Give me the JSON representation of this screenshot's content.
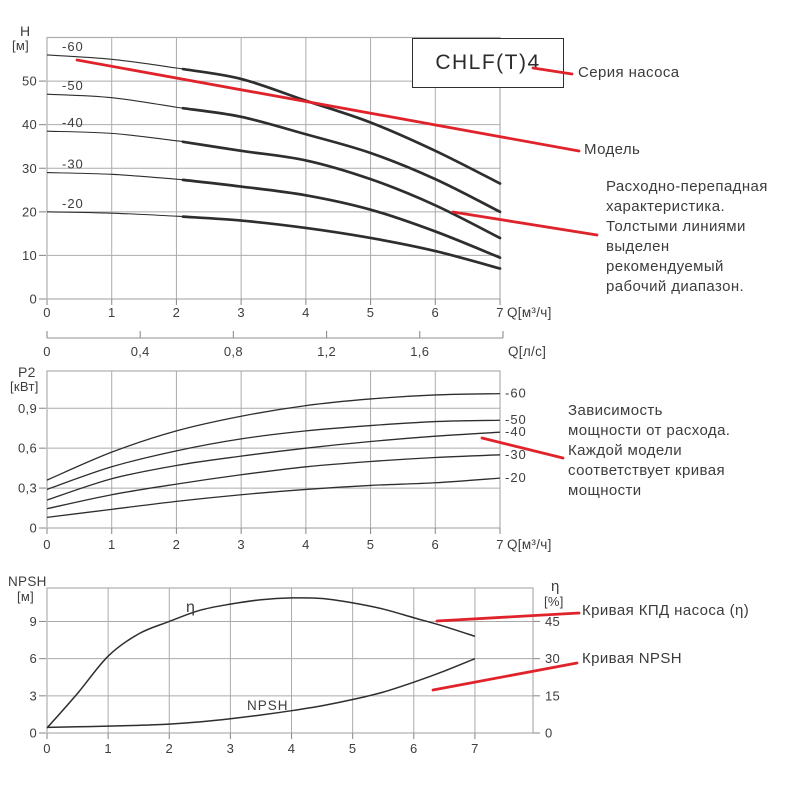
{
  "colors": {
    "red": "#e0232b",
    "curve": "#2e2e2e",
    "grid": "#ababab",
    "tick": "#8f8f8f",
    "tick_text": "#3d3d3d",
    "annotation_text": "#3c3c3c",
    "box_border": "#2e2e2e",
    "background": "#ffffff"
  },
  "series_box": {
    "label": "CHLF(T)4"
  },
  "annotations": {
    "pump_series": "Серия насоса",
    "model": "Модель",
    "flow_head": "Расходно-перепадная\nхарактеристика.\nТолстыми линиями\nвыделен\nрекомендуемый\nрабочий диапазон.",
    "power": "Зависимость\nмощности от расхода.\nКаждой модели\nсоответствует кривая\nмощности",
    "efficiency": "Кривая КПД насоса (η)",
    "npsh": "Кривая NPSH"
  },
  "chart_data": [
    {
      "id": "head",
      "type": "line",
      "ylabel": "H",
      "ylabel_unit": "[м]",
      "xlabel": "Q[м³/ч]",
      "x2label": "Q[л/с]",
      "x2_factor": 3.6,
      "xlim": [
        0,
        7
      ],
      "ylim": [
        0,
        60
      ],
      "grid": true,
      "xticks": [
        [
          0,
          "0"
        ],
        [
          1,
          "1"
        ],
        [
          2,
          "2"
        ],
        [
          3,
          "3"
        ],
        [
          4,
          "4"
        ],
        [
          5,
          "5"
        ],
        [
          6,
          "6"
        ],
        [
          7,
          "7"
        ]
      ],
      "yticks": [
        [
          0,
          "0"
        ],
        [
          10,
          "10"
        ],
        [
          20,
          "20"
        ],
        [
          30,
          "30"
        ],
        [
          40,
          "40"
        ],
        [
          50,
          "50"
        ]
      ],
      "x2ticks": [
        [
          0,
          "0"
        ],
        [
          0.4,
          "0,4"
        ],
        [
          0.8,
          "0,8"
        ],
        [
          1.2,
          "1,2"
        ],
        [
          1.6,
          "1,6"
        ]
      ],
      "note": "thick line segments mark recommended operating range",
      "series": [
        {
          "name": "-60",
          "thick_from": 2.1,
          "points": [
            [
              0,
              56
            ],
            [
              1,
              55
            ],
            [
              2,
              53
            ],
            [
              3,
              50.5
            ],
            [
              4,
              45.5
            ],
            [
              5,
              40.5
            ],
            [
              6,
              34
            ],
            [
              7,
              26.5
            ]
          ]
        },
        {
          "name": "-50",
          "thick_from": 2.1,
          "points": [
            [
              0,
              47
            ],
            [
              1,
              46.2
            ],
            [
              2,
              44
            ],
            [
              3,
              41.8
            ],
            [
              4,
              37.8
            ],
            [
              5,
              33.5
            ],
            [
              6,
              27.5
            ],
            [
              7,
              20
            ]
          ]
        },
        {
          "name": "-40",
          "thick_from": 2.1,
          "points": [
            [
              0,
              38.5
            ],
            [
              1,
              38
            ],
            [
              2,
              36.3
            ],
            [
              3,
              34
            ],
            [
              4,
              31.8
            ],
            [
              5,
              27.5
            ],
            [
              6,
              21.5
            ],
            [
              7,
              14
            ]
          ]
        },
        {
          "name": "-30",
          "thick_from": 2.1,
          "points": [
            [
              0,
              29
            ],
            [
              1,
              28.6
            ],
            [
              2,
              27.5
            ],
            [
              3,
              25.8
            ],
            [
              4,
              23.8
            ],
            [
              5,
              20.5
            ],
            [
              6,
              15.5
            ],
            [
              7,
              9.5
            ]
          ]
        },
        {
          "name": "-20",
          "thick_from": 2.1,
          "points": [
            [
              0,
              20
            ],
            [
              1,
              19.7
            ],
            [
              2,
              19
            ],
            [
              3,
              18
            ],
            [
              4,
              16.3
            ],
            [
              5,
              14
            ],
            [
              6,
              11
            ],
            [
              7,
              7
            ]
          ]
        }
      ]
    },
    {
      "id": "power",
      "type": "line",
      "ylabel": "P2",
      "ylabel_unit": "[кВт]",
      "xlabel": "Q[м³/ч]",
      "xlim": [
        0,
        7
      ],
      "ylim": [
        0,
        1.18
      ],
      "grid": true,
      "xticks": [
        [
          0,
          "0"
        ],
        [
          1,
          "1"
        ],
        [
          2,
          "2"
        ],
        [
          3,
          "3"
        ],
        [
          4,
          "4"
        ],
        [
          5,
          "5"
        ],
        [
          6,
          "6"
        ],
        [
          7,
          "7"
        ]
      ],
      "yticks": [
        [
          0,
          "0"
        ],
        [
          0.3,
          "0,3"
        ],
        [
          0.6,
          "0,6"
        ],
        [
          0.9,
          "0,9"
        ]
      ],
      "series": [
        {
          "name": "-60",
          "points": [
            [
              0,
              0.36
            ],
            [
              1,
              0.57
            ],
            [
              2,
              0.73
            ],
            [
              3,
              0.84
            ],
            [
              4,
              0.92
            ],
            [
              5,
              0.97
            ],
            [
              6,
              1.0
            ],
            [
              7,
              1.01
            ]
          ]
        },
        {
          "name": "-50",
          "points": [
            [
              0,
              0.29
            ],
            [
              1,
              0.46
            ],
            [
              2,
              0.58
            ],
            [
              3,
              0.67
            ],
            [
              4,
              0.73
            ],
            [
              5,
              0.77
            ],
            [
              6,
              0.8
            ],
            [
              7,
              0.81
            ]
          ]
        },
        {
          "name": "-40",
          "points": [
            [
              0,
              0.21
            ],
            [
              1,
              0.37
            ],
            [
              2,
              0.47
            ],
            [
              3,
              0.54
            ],
            [
              4,
              0.6
            ],
            [
              5,
              0.65
            ],
            [
              6,
              0.69
            ],
            [
              7,
              0.72
            ]
          ]
        },
        {
          "name": "-30",
          "points": [
            [
              0,
              0.145
            ],
            [
              1,
              0.25
            ],
            [
              2,
              0.33
            ],
            [
              3,
              0.4
            ],
            [
              4,
              0.46
            ],
            [
              5,
              0.5
            ],
            [
              6,
              0.53
            ],
            [
              7,
              0.55
            ]
          ]
        },
        {
          "name": "-20",
          "points": [
            [
              0,
              0.08
            ],
            [
              1,
              0.14
            ],
            [
              2,
              0.2
            ],
            [
              3,
              0.25
            ],
            [
              4,
              0.29
            ],
            [
              5,
              0.32
            ],
            [
              6,
              0.34
            ],
            [
              7,
              0.375
            ]
          ]
        }
      ]
    },
    {
      "id": "npsh",
      "type": "line",
      "ylabel": "NPSH",
      "ylabel_unit": "[м]",
      "y2label": "η",
      "y2label_unit": "[%]",
      "xlim": [
        0,
        7.95
      ],
      "ylim": [
        0,
        11.7
      ],
      "y2lim": [
        0,
        58.5
      ],
      "grid": true,
      "xticks": [
        [
          0,
          "0"
        ],
        [
          1,
          "1"
        ],
        [
          2,
          "2"
        ],
        [
          3,
          "3"
        ],
        [
          4,
          "4"
        ],
        [
          5,
          "5"
        ],
        [
          6,
          "6"
        ],
        [
          7,
          "7"
        ]
      ],
      "yticks": [
        [
          0,
          "0"
        ],
        [
          3,
          "3"
        ],
        [
          6,
          "6"
        ],
        [
          9,
          "9"
        ]
      ],
      "y2ticks": [
        [
          0,
          "0"
        ],
        [
          15,
          "15"
        ],
        [
          30,
          "30"
        ],
        [
          45,
          "45"
        ]
      ],
      "series": [
        {
          "name": "η",
          "points": [
            [
              0,
              0.4
            ],
            [
              0.5,
              3.2
            ],
            [
              1,
              6.2
            ],
            [
              1.5,
              8.0
            ],
            [
              2,
              9.0
            ],
            [
              2.5,
              9.9
            ],
            [
              3,
              10.4
            ],
            [
              3.5,
              10.75
            ],
            [
              4,
              10.9
            ],
            [
              4.5,
              10.85
            ],
            [
              5,
              10.5
            ],
            [
              5.5,
              10.0
            ],
            [
              6,
              9.3
            ],
            [
              6.5,
              8.6
            ],
            [
              7,
              7.8
            ]
          ]
        },
        {
          "name": "NPSH",
          "points": [
            [
              0,
              0.45
            ],
            [
              0.5,
              0.5
            ],
            [
              1,
              0.55
            ],
            [
              1.5,
              0.62
            ],
            [
              2,
              0.72
            ],
            [
              2.5,
              0.9
            ],
            [
              3,
              1.15
            ],
            [
              3.5,
              1.45
            ],
            [
              4,
              1.8
            ],
            [
              4.5,
              2.2
            ],
            [
              5,
              2.7
            ],
            [
              5.5,
              3.3
            ],
            [
              6,
              4.1
            ],
            [
              6.5,
              5.0
            ],
            [
              7,
              6.0
            ]
          ]
        }
      ]
    }
  ]
}
